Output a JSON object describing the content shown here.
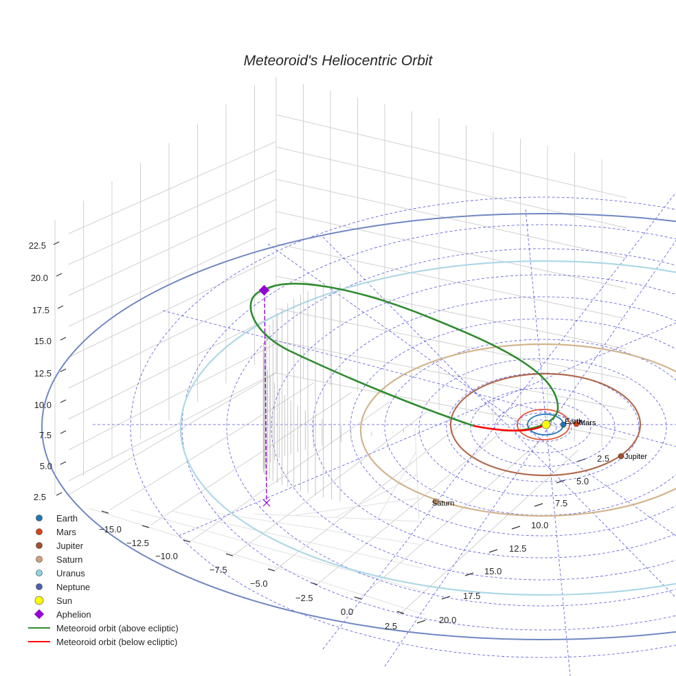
{
  "chart_data": {
    "type": "scatter",
    "projection": "3d",
    "title": "Meteoroid's Heliocentric Orbit",
    "xlabel": "",
    "ylabel": "",
    "zlabel": "",
    "x_ticks": [
      "−15.0",
      "−12.5",
      "−10.0",
      "−7.5",
      "−5.0",
      "−2.5",
      "0.0",
      "2.5"
    ],
    "y_ticks": [
      "2.5",
      "5.0",
      "7.5",
      "10.0",
      "12.5",
      "15.0",
      "17.5",
      "20.0"
    ],
    "z_ticks": [
      "2.5",
      "5.0",
      "7.5",
      "10.0",
      "12.5",
      "15.0",
      "17.5",
      "20.0",
      "22.5"
    ],
    "planets": [
      {
        "name": "Earth",
        "label": "Earth",
        "color": "#1f77b4",
        "orbit_color": "#1f77b4"
      },
      {
        "name": "Mars",
        "label": "Mars",
        "color": "#d84315",
        "orbit_color": "#e4573a"
      },
      {
        "name": "Jupiter",
        "label": "Jupiter",
        "color": "#a0522d",
        "orbit_color": "#b06a4e"
      },
      {
        "name": "Saturn",
        "label": "Saturn",
        "color": "#d2a07a",
        "orbit_color": "#d2b48c"
      },
      {
        "name": "Uranus",
        "label": "",
        "color": "#8fd3e6",
        "orbit_color": "#add8e6"
      },
      {
        "name": "Neptune",
        "label": "",
        "color": "#4a60b0",
        "orbit_color": "#6f86c2"
      }
    ],
    "sun": {
      "name": "Sun",
      "color": "#ffff00"
    },
    "aphelion": {
      "name": "Aphelion",
      "color": "#9400d3"
    },
    "series": [
      {
        "name": "Meteoroid orbit (above ecliptic)",
        "color": "#2e8b2e"
      },
      {
        "name": "Meteoroid orbit (below ecliptic)",
        "color": "#ff0000"
      }
    ],
    "legend": [
      "Earth",
      "Mars",
      "Jupiter",
      "Saturn",
      "Uranus",
      "Neptune",
      "Sun",
      "Aphelion",
      "Meteoroid orbit (above ecliptic)",
      "Meteoroid orbit (below ecliptic)"
    ],
    "legend_position": "lower-left",
    "grid": true,
    "colors": {
      "ecliptic_grid": "#5555dd",
      "aphelion_drop": "#9400d3",
      "drop_lines": "#b8b8b8"
    }
  }
}
